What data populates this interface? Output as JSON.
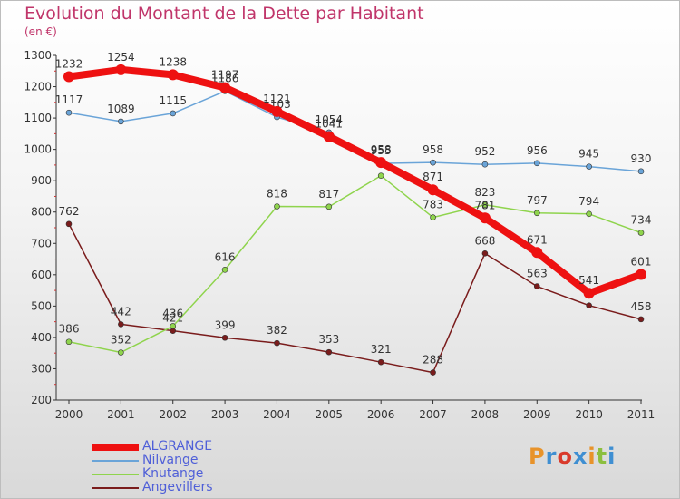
{
  "title": "Evolution du Montant de la Dette par Habitant",
  "subtitle": "(en €)",
  "logo": {
    "text": "Proxiti",
    "colors": [
      "#e8932a",
      "#3f8fd2",
      "#d93a2b",
      "#3f8fd2",
      "#e8932a",
      "#8cbf3f",
      "#3f8fd2"
    ]
  },
  "chart_data": {
    "type": "line",
    "categories": [
      "2000",
      "2001",
      "2002",
      "2003",
      "2004",
      "2005",
      "2006",
      "2007",
      "2008",
      "2009",
      "2010",
      "2011"
    ],
    "ylim": [
      200,
      1300
    ],
    "yticks": [
      200,
      300,
      400,
      500,
      600,
      700,
      800,
      900,
      1000,
      1100,
      1200,
      1300
    ],
    "grid": false,
    "legend": "bottom-left",
    "series": [
      {
        "name": "Angevillers",
        "color": "#7a1c1c",
        "values": [
          762,
          442,
          421,
          399,
          382,
          353,
          321,
          288,
          668,
          563,
          502,
          458
        ],
        "labels": [
          "762",
          "442",
          "421",
          "399",
          "382",
          "353",
          "321",
          "288",
          "668",
          "563",
          "",
          "458"
        ]
      },
      {
        "name": "Knutange",
        "color": "#8fd44d",
        "values": [
          386,
          352,
          436,
          616,
          818,
          817,
          916,
          783,
          823,
          797,
          794,
          734
        ],
        "labels": [
          "386",
          "352",
          "436",
          "616",
          "818",
          "817",
          "",
          "783",
          "823",
          "797",
          "794",
          "734"
        ]
      },
      {
        "name": "Nilvange",
        "color": "#6aa4d8",
        "values": [
          1117,
          1089,
          1115,
          1186,
          1103,
          1054,
          955,
          958,
          952,
          956,
          945,
          930
        ],
        "labels": [
          "1117",
          "1089",
          "1115",
          "1186",
          "1103",
          "1054",
          "955",
          "958",
          "952",
          "956",
          "945",
          "930"
        ]
      },
      {
        "name": "ALGRANGE",
        "color": "#ee1111",
        "values": [
          1232,
          1254,
          1238,
          1197,
          1121,
          1041,
          958,
          871,
          781,
          671,
          541,
          601
        ],
        "labels": [
          "1232",
          "1254",
          "1238",
          "1197",
          "1121",
          "1041",
          "958",
          "871",
          "781",
          "671",
          "541",
          "601"
        ]
      }
    ]
  },
  "legend_items": [
    {
      "name": "ALGRANGE",
      "color": "#ee1111",
      "width": 8
    },
    {
      "name": "Nilvange",
      "color": "#6aa4d8",
      "width": 2
    },
    {
      "name": "Knutange",
      "color": "#8fd44d",
      "width": 2
    },
    {
      "name": "Angevillers",
      "color": "#7a1c1c",
      "width": 2
    }
  ]
}
